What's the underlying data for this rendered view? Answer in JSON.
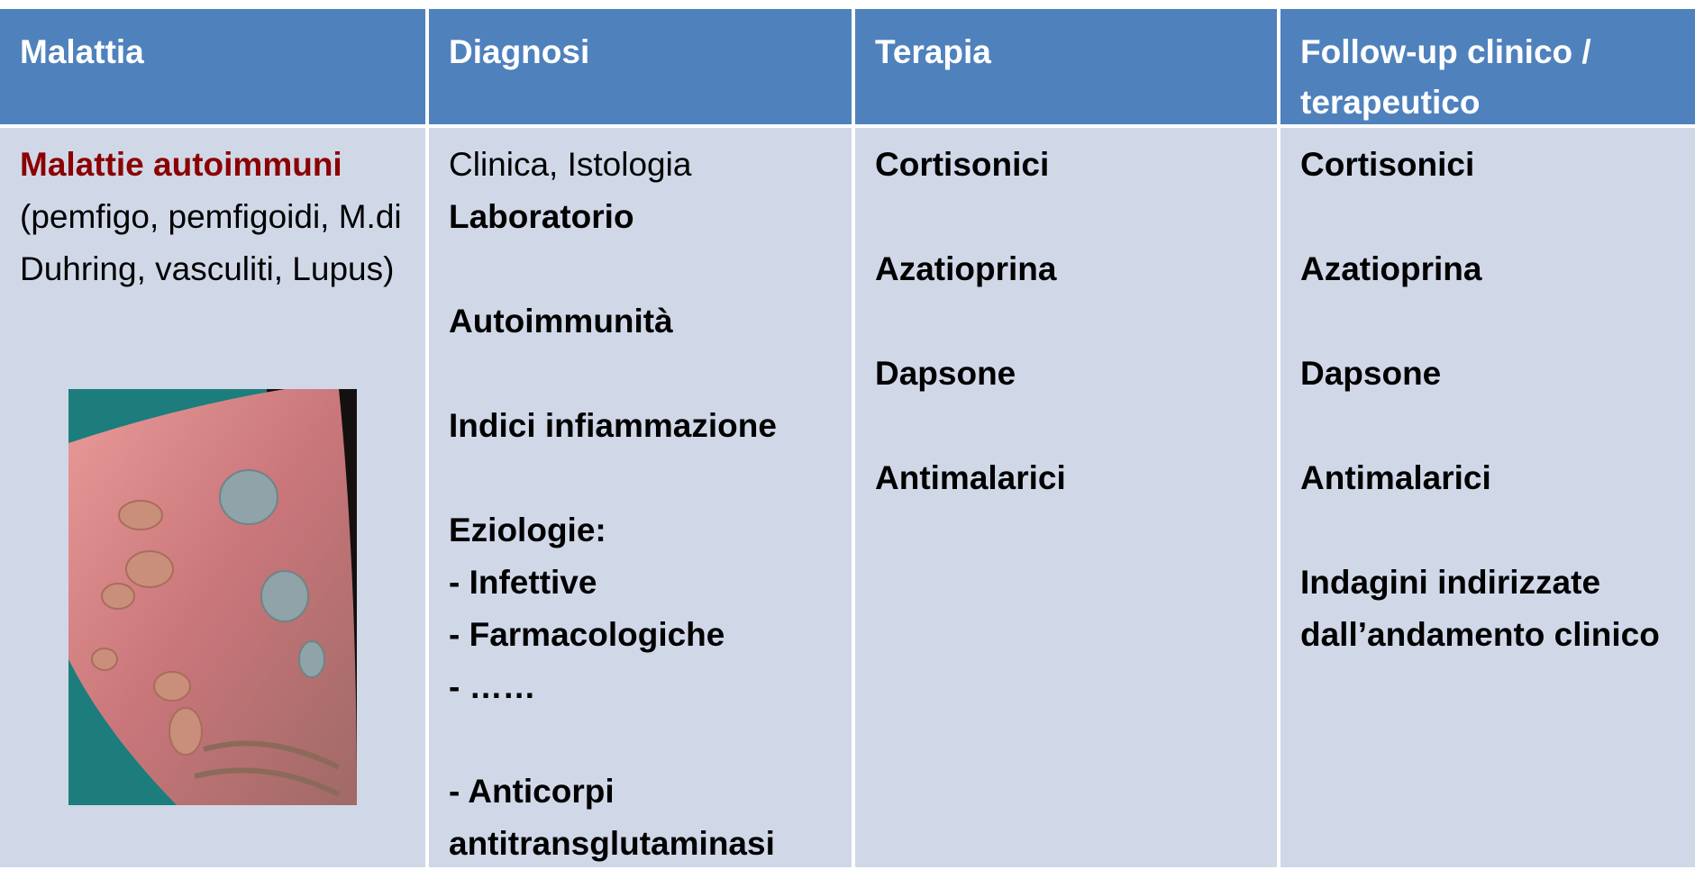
{
  "header": {
    "cells": [
      "Malattia",
      "Diagnosi",
      "Terapia",
      "Follow-up  clinico / terapeutico"
    ]
  },
  "table": {
    "rows": [
      [
        {
          "title": "Malattie autoimmuni",
          "text": "(pemfigo, pemfigoidi, M.di Duhring, vasculiti, Lupus)"
        },
        {
          "lines": [
            "Clinica, Istologia",
            "Laboratorio",
            "Autoimmunità",
            "Indici infiammazione",
            "Eziologie:",
            "- Infettive",
            "- Farmacologiche",
            "- ……",
            "- Anticorpi antitransglutaminasi"
          ]
        },
        {
          "lines": [
            "Cortisonici",
            "Azatioprina",
            "Dapsone",
            "Antimalarici"
          ]
        },
        {
          "lines": [
            "Cortisonici",
            "Azatioprina",
            "Dapsone",
            "Antimalarici",
            "Indagini indirizzate dall’andamento clinico"
          ]
        }
      ]
    ]
  }
}
